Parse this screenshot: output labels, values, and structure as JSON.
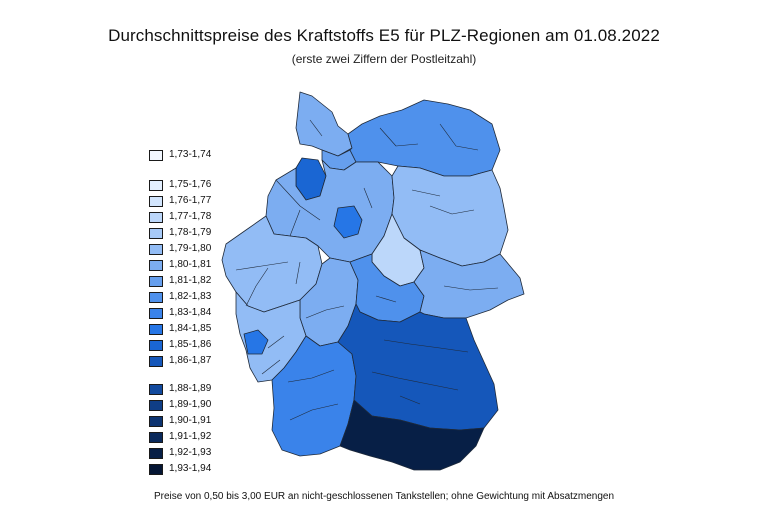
{
  "title": "Durchschnittspreise des Kraftstoffs E5 für PLZ-Regionen am 01.08.2022",
  "subtitle": "(erste zwei Ziffern der Postleitzahl)",
  "footnote": "Preise von 0,50 bis 3,00 EUR an nicht-geschlossenen Tankstellen; ohne Gewichtung mit Absatzmengen",
  "legend": [
    {
      "label": "1,73-1,74",
      "color": "#f2f7ff"
    },
    {
      "label": "1,75-1,76",
      "color": "#e3efff"
    },
    {
      "label": "1,76-1,77",
      "color": "#d2e5fd"
    },
    {
      "label": "1,77-1,78",
      "color": "#bcd7fa"
    },
    {
      "label": "1,78-1,79",
      "color": "#a7caf8"
    },
    {
      "label": "1,79-1,80",
      "color": "#92bcf5"
    },
    {
      "label": "1,80-1,81",
      "color": "#7cadf1"
    },
    {
      "label": "1,81-1,82",
      "color": "#669fee"
    },
    {
      "label": "1,82-1,83",
      "color": "#4f91ec"
    },
    {
      "label": "1,83-1,84",
      "color": "#3a83ea"
    },
    {
      "label": "1,84-1,85",
      "color": "#2676e6"
    },
    {
      "label": "1,85-1,86",
      "color": "#1a66d3"
    },
    {
      "label": "1,86-1,87",
      "color": "#1557ba"
    },
    {
      "label": "1,88-1,89",
      "color": "#124a9e"
    },
    {
      "label": "1,89-1,90",
      "color": "#0f3e86"
    },
    {
      "label": "1,90-1,91",
      "color": "#0c3370"
    },
    {
      "label": "1,91-1,92",
      "color": "#0a295b"
    },
    {
      "label": "1,92-1,93",
      "color": "#071f46"
    },
    {
      "label": "1,93-1,94",
      "color": "#051634"
    }
  ],
  "regions": [
    {
      "name": "Schleswig-Holstein",
      "color": "#7cadf1"
    },
    {
      "name": "Hamburg",
      "color": "#669fee"
    },
    {
      "name": "Mecklenburg-Vorpommern",
      "color": "#4f91ec"
    },
    {
      "name": "Bremen",
      "color": "#1a66d3"
    },
    {
      "name": "Niedersachsen",
      "color": "#7cadf1"
    },
    {
      "name": "Hannover",
      "color": "#2676e6"
    },
    {
      "name": "Berlin-Brandenburg",
      "color": "#92bcf5"
    },
    {
      "name": "Sachsen-Anhalt",
      "color": "#bcd7fa"
    },
    {
      "name": "Nordrhein-Westfalen",
      "color": "#92bcf5"
    },
    {
      "name": "Hessen",
      "color": "#7cadf1"
    },
    {
      "name": "Thüringen",
      "color": "#4f91ec"
    },
    {
      "name": "Sachsen",
      "color": "#7cadf1"
    },
    {
      "name": "Rheinland-Pfalz",
      "color": "#92bcf5"
    },
    {
      "name": "Saarland",
      "color": "#2676e6"
    },
    {
      "name": "Baden-Württemberg",
      "color": "#3a83ea"
    },
    {
      "name": "Bayern",
      "color": "#1557ba"
    },
    {
      "name": "Südbayern",
      "color": "#071f46"
    }
  ]
}
